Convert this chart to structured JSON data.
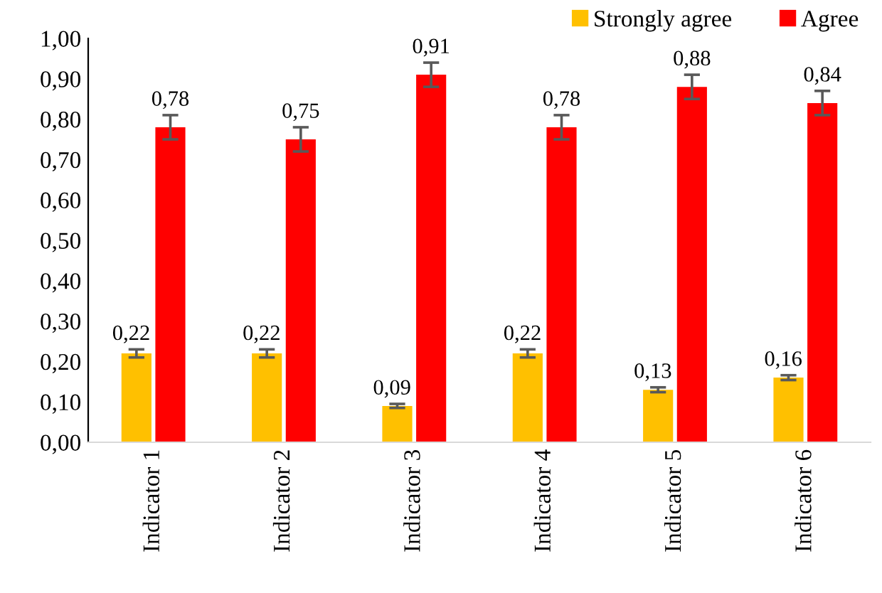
{
  "chart_data": {
    "type": "bar",
    "categories": [
      "Indicator 1",
      "Indicator 2",
      "Indicator 3",
      "Indicator 4",
      "Indicator 5",
      "Indicator 6"
    ],
    "series": [
      {
        "name": "Strongly agree",
        "color": "#ffc000",
        "values": [
          0.22,
          0.22,
          0.09,
          0.22,
          0.13,
          0.16
        ],
        "errors": [
          0.01,
          0.01,
          0.005,
          0.01,
          0.006,
          0.006
        ],
        "value_labels": [
          "0,22",
          "0,22",
          "0,09",
          "0,22",
          "0,13",
          "0,16"
        ]
      },
      {
        "name": "Agree",
        "color": "#ff0000",
        "values": [
          0.78,
          0.75,
          0.91,
          0.78,
          0.88,
          0.84
        ],
        "errors": [
          0.03,
          0.03,
          0.03,
          0.03,
          0.03,
          0.03
        ],
        "value_labels": [
          "0,78",
          "0,75",
          "0,91",
          "0,78",
          "0,88",
          "0,84"
        ]
      }
    ],
    "ylim": [
      0,
      1
    ],
    "yticks": [
      {
        "value": 0,
        "label": "0,00"
      },
      {
        "value": 0.1,
        "label": "0,10"
      },
      {
        "value": 0.2,
        "label": "0,20"
      },
      {
        "value": 0.3,
        "label": "0,30"
      },
      {
        "value": 0.4,
        "label": "0,40"
      },
      {
        "value": 0.5,
        "label": "0,50"
      },
      {
        "value": 0.6,
        "label": "0,60"
      },
      {
        "value": 0.7,
        "label": "0,70"
      },
      {
        "value": 0.8,
        "label": "0,80"
      },
      {
        "value": 0.9,
        "label": "0,90"
      },
      {
        "value": 1,
        "label": "1,00"
      }
    ],
    "grid": false,
    "legend": "top right"
  }
}
